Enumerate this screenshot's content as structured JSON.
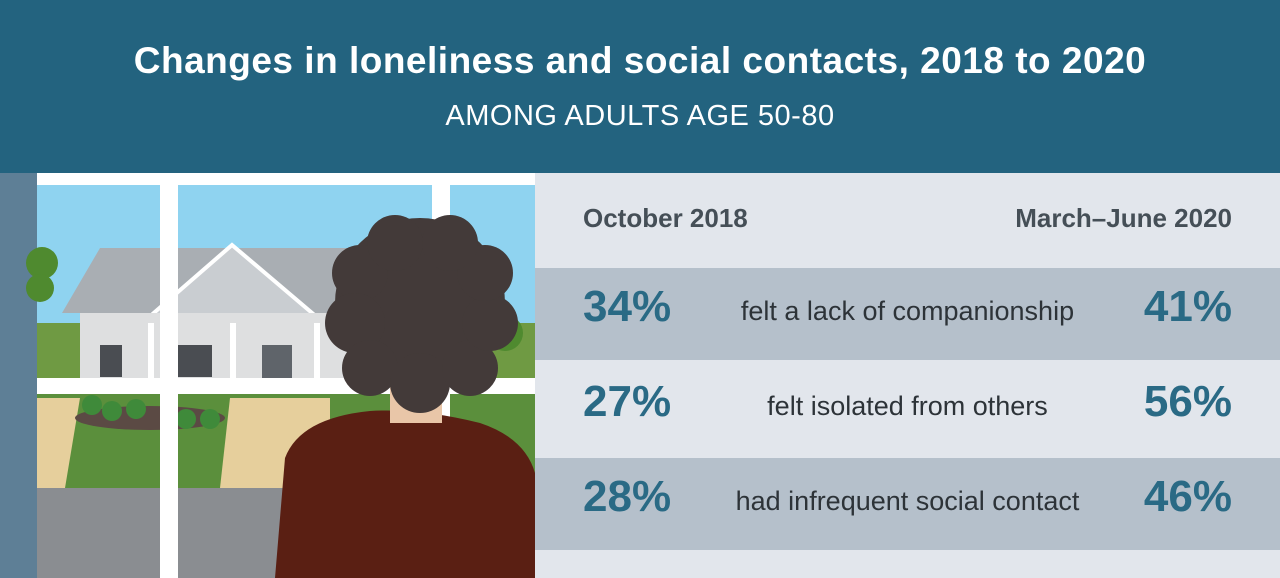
{
  "header": {
    "title": "Changes in loneliness and social contacts, 2018 to 2020",
    "subtitle": "AMONG ADULTS AGE 50-80"
  },
  "colors": {
    "header_bg": "#23637f",
    "percent_text": "#2a6a85",
    "row_shade": "#b5c0cb",
    "panel_bg": "#e2e6ec"
  },
  "chart_data": {
    "type": "table",
    "title": "Changes in loneliness and social contacts, 2018 to 2020",
    "subtitle": "AMONG ADULTS AGE 50-80",
    "columns": [
      "October 2018",
      "March–June 2020"
    ],
    "rows": [
      {
        "label": "felt a lack of companionship",
        "values": [
          "34%",
          "41%"
        ]
      },
      {
        "label": "felt isolated from others",
        "values": [
          "27%",
          "56%"
        ]
      },
      {
        "label": "had infrequent social contact",
        "values": [
          "28%",
          "46%"
        ]
      }
    ]
  },
  "illustration": {
    "description_icon": "woman-looking-out-window-icon"
  }
}
